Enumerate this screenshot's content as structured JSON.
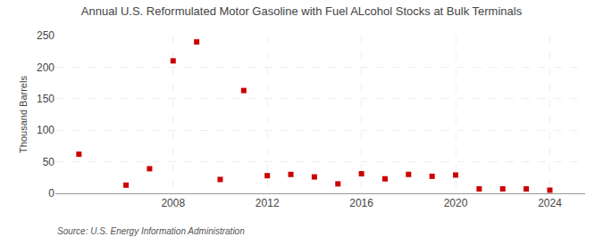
{
  "chart_data": {
    "type": "scatter",
    "title": "Annual U.S. Reformulated Motor Gasoline with Fuel ALcohol Stocks at Bulk Terminals",
    "ylabel": "Thousand Barrels",
    "annotations": [
      "Source: U.S. Energy Information Administration"
    ],
    "x": [
      2004,
      2006,
      2007,
      2008,
      2009,
      2010,
      2011,
      2012,
      2013,
      2014,
      2015,
      2016,
      2017,
      2018,
      2019,
      2020,
      2021,
      2022,
      2023,
      2024
    ],
    "values": [
      62,
      13,
      39,
      210,
      240,
      22,
      163,
      28,
      30,
      26,
      15,
      31,
      23,
      30,
      27,
      29,
      7,
      7,
      7,
      5
    ],
    "color": "#cc0000",
    "marker": "square",
    "xlim": [
      2003,
      2025.5
    ],
    "ylim": [
      0,
      250
    ],
    "xticks": [
      2008,
      2012,
      2016,
      2020,
      2024
    ],
    "yticks": [
      0,
      50,
      100,
      150,
      200,
      250
    ],
    "grid": true
  }
}
